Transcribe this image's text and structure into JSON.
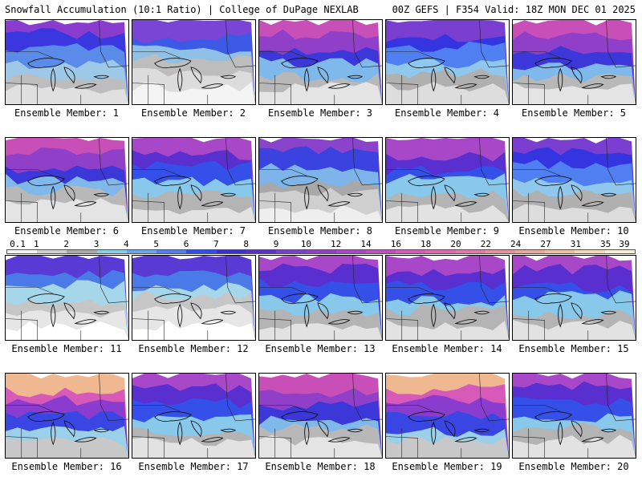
{
  "header": {
    "left": "Snowfall Accumulation (10:1 Ratio) | College of DuPage NEXLAB",
    "right": "00Z GEFS | F354 Valid: 18Z MON DEC 01 2025"
  },
  "members": [
    {
      "label": "Ensemble Member: 1",
      "tone": "purple-north"
    },
    {
      "label": "Ensemble Member: 2",
      "tone": "mixed"
    },
    {
      "label": "Ensemble Member: 3",
      "tone": "magenta"
    },
    {
      "label": "Ensemble Member: 4",
      "tone": "blue"
    },
    {
      "label": "Ensemble Member: 5",
      "tone": "magenta"
    },
    {
      "label": "Ensemble Member: 6",
      "tone": "magenta"
    },
    {
      "label": "Ensemble Member: 7",
      "tone": "purple"
    },
    {
      "label": "Ensemble Member: 8",
      "tone": "gray-south"
    },
    {
      "label": "Ensemble Member: 9",
      "tone": "purple"
    },
    {
      "label": "Ensemble Member: 10",
      "tone": "blue"
    },
    {
      "label": "Ensemble Member: 11",
      "tone": "light"
    },
    {
      "label": "Ensemble Member: 12",
      "tone": "light"
    },
    {
      "label": "Ensemble Member: 13",
      "tone": "purple"
    },
    {
      "label": "Ensemble Member: 14",
      "tone": "purple"
    },
    {
      "label": "Ensemble Member: 15",
      "tone": "purple"
    },
    {
      "label": "Ensemble Member: 16",
      "tone": "orange-north"
    },
    {
      "label": "Ensemble Member: 17",
      "tone": "purple"
    },
    {
      "label": "Ensemble Member: 18",
      "tone": "magenta"
    },
    {
      "label": "Ensemble Member: 19",
      "tone": "orange-north"
    },
    {
      "label": "Ensemble Member: 20",
      "tone": "purple"
    }
  ],
  "colorbar": {
    "labels": [
      "0.1",
      "1",
      "2",
      "3",
      "4",
      "5",
      "6",
      "7",
      "8",
      "9",
      "10",
      "12",
      "14",
      "16",
      "18",
      "20",
      "22",
      "24",
      "27",
      "31",
      "35",
      "39"
    ],
    "colors": [
      "#f2f2f2",
      "#cfcfcf",
      "#a9a9a9",
      "#88d0e8",
      "#6aa8ec",
      "#4f7ff0",
      "#2f4ff0",
      "#3c2fd8",
      "#5a2fd0",
      "#7a3fd0",
      "#9040c8",
      "#a848c8",
      "#c050c0",
      "#d85ab8",
      "#e066b0",
      "#e27aa8",
      "#e690a0",
      "#eaa898",
      "#eec0a0",
      "#f2d8b8",
      "#f6ecd8"
    ]
  }
}
